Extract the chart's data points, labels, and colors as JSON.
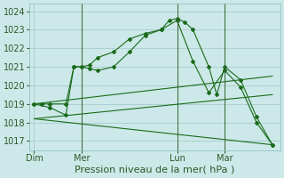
{
  "bg_color": "#cce8e8",
  "grid_color": "#a8cccc",
  "line_color": "#1a6b1a",
  "title": "Pression niveau de la mer( hPa )",
  "ylabel_ticks": [
    1017,
    1018,
    1019,
    1020,
    1021,
    1022,
    1023,
    1024
  ],
  "xticklabels": [
    "Dim",
    "Mer",
    "Lun",
    "Mar"
  ],
  "xtick_positions": [
    0,
    3,
    9,
    12
  ],
  "xlim": [
    -0.3,
    15.5
  ],
  "ylim": [
    1016.5,
    1024.4
  ],
  "lines": [
    {
      "x": [
        0,
        0.5,
        1,
        2,
        2.5,
        3,
        3.5,
        4,
        5,
        6,
        7,
        8,
        8.5,
        9,
        9.5,
        10,
        11,
        11.5,
        12,
        13,
        14,
        15
      ],
      "y": [
        1019.0,
        1019.0,
        1019.0,
        1019.0,
        1021.0,
        1021.0,
        1021.1,
        1021.5,
        1021.8,
        1022.5,
        1022.8,
        1023.0,
        1023.5,
        1023.6,
        1023.4,
        1023.0,
        1021.0,
        1019.5,
        1021.0,
        1020.3,
        1018.3,
        1016.8
      ],
      "markers": true
    },
    {
      "x": [
        0,
        1,
        2,
        2.5,
        3,
        3.5,
        4,
        5,
        6,
        7,
        8,
        9,
        10,
        11,
        12,
        13,
        14,
        15
      ],
      "y": [
        1019.0,
        1018.8,
        1018.4,
        1021.0,
        1021.0,
        1020.9,
        1020.8,
        1021.0,
        1021.8,
        1022.7,
        1023.0,
        1023.5,
        1021.3,
        1019.6,
        1020.8,
        1019.9,
        1018.0,
        1016.8
      ],
      "markers": true
    },
    {
      "x": [
        0,
        15
      ],
      "y": [
        1019.0,
        1020.5
      ],
      "markers": false
    },
    {
      "x": [
        0,
        15
      ],
      "y": [
        1018.2,
        1019.5
      ],
      "markers": false
    },
    {
      "x": [
        0,
        15
      ],
      "y": [
        1018.2,
        1016.8
      ],
      "markers": false
    }
  ],
  "vlines": [
    3,
    9,
    12
  ],
  "title_fontsize": 8,
  "tick_fontsize": 7
}
